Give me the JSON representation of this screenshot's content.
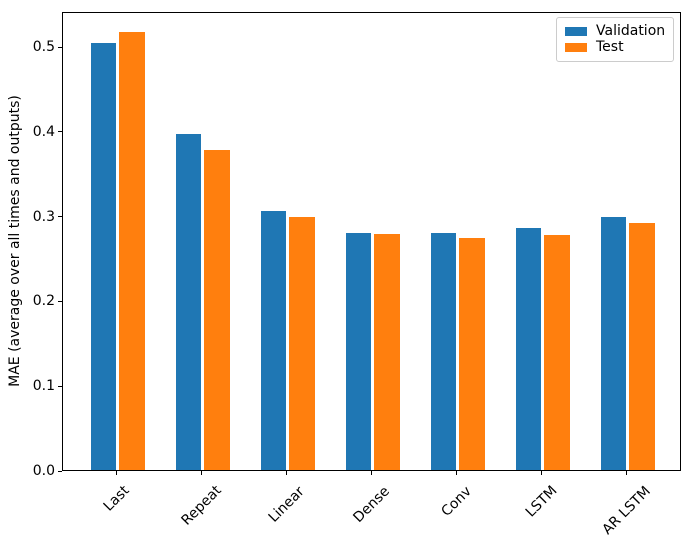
{
  "chart_data": {
    "type": "bar",
    "categories": [
      "Last",
      "Repeat",
      "Linear",
      "Dense",
      "Conv",
      "LSTM",
      "AR LSTM"
    ],
    "series": [
      {
        "name": "Validation",
        "color": "#1f77b4",
        "values": [
          0.504,
          0.397,
          0.306,
          0.28,
          0.28,
          0.286,
          0.299
        ]
      },
      {
        "name": "Test",
        "color": "#ff7f0e",
        "values": [
          0.517,
          0.378,
          0.299,
          0.278,
          0.274,
          0.277,
          0.291
        ]
      }
    ],
    "title": "",
    "xlabel": "",
    "ylabel": "MAE (average over all times and outputs)",
    "ytick_labels": [
      "0.0",
      "0.1",
      "0.2",
      "0.3",
      "0.4",
      "0.5"
    ],
    "ylim": [
      0,
      0.5415
    ],
    "grid": false,
    "xtick_rotation": 45,
    "legend_position": "upper right"
  }
}
